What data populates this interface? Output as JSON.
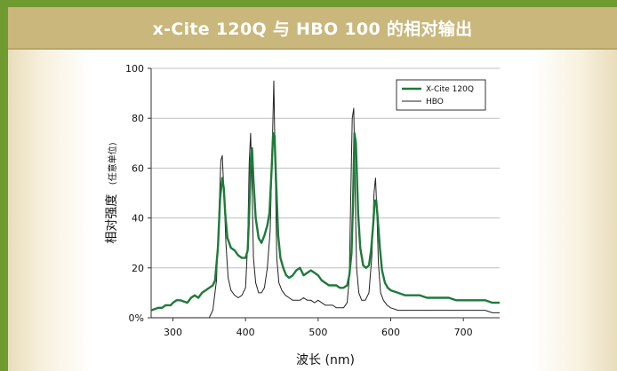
{
  "title": "x-Cite 120Q 与 HBO 100 的相对输出",
  "chart_data": {
    "type": "line",
    "title": "x-Cite 120Q 与 HBO 100 的相对输出",
    "xlabel": "波长 (nm)",
    "ylabel": "相对强度",
    "ylabel_sub": "(任意单位)",
    "xlim": [
      270,
      750
    ],
    "ylim": [
      0,
      100
    ],
    "xticks": [
      300,
      400,
      500,
      600,
      700
    ],
    "xtick_labels": [
      "300",
      "400",
      "500",
      "600",
      "700"
    ],
    "yticks": [
      0,
      20,
      40,
      60,
      80,
      100
    ],
    "ytick_labels": [
      "0%",
      "20",
      "40",
      "60",
      "80",
      "100"
    ],
    "grid": "horizontal",
    "legend_position": "top-right",
    "series": [
      {
        "name": "X-Cite 120Q",
        "color": "#1f7a3a",
        "x": [
          270,
          280,
          285,
          290,
          297,
          300,
          305,
          310,
          320,
          325,
          330,
          335,
          340,
          345,
          350,
          355,
          358,
          362,
          365,
          368,
          370,
          372,
          375,
          380,
          385,
          390,
          395,
          400,
          403,
          405,
          407,
          409,
          411,
          414,
          418,
          422,
          426,
          430,
          433,
          436,
          438,
          440,
          442,
          445,
          448,
          452,
          456,
          460,
          465,
          470,
          475,
          480,
          485,
          490,
          495,
          500,
          505,
          510,
          515,
          520,
          525,
          530,
          535,
          540,
          543,
          546,
          548,
          550,
          552,
          555,
          558,
          562,
          566,
          570,
          573,
          576,
          578,
          580,
          582,
          585,
          588,
          592,
          596,
          600,
          610,
          620,
          630,
          640,
          650,
          660,
          670,
          680,
          690,
          700,
          710,
          720,
          730,
          740,
          750
        ],
        "y": [
          3,
          4,
          4,
          5,
          5,
          6,
          7,
          7,
          6,
          8,
          9,
          8,
          10,
          11,
          12,
          13,
          15,
          28,
          48,
          56,
          52,
          42,
          32,
          28,
          27,
          25,
          24,
          24,
          27,
          42,
          63,
          68,
          55,
          40,
          32,
          30,
          33,
          37,
          42,
          60,
          74,
          73,
          55,
          33,
          24,
          20,
          17,
          16,
          17,
          19,
          20,
          17,
          18,
          19,
          18,
          17,
          15,
          14,
          13,
          13,
          13,
          12,
          12,
          13,
          17,
          26,
          45,
          74,
          70,
          42,
          28,
          21,
          20,
          21,
          27,
          38,
          47,
          47,
          40,
          28,
          19,
          14,
          12,
          11,
          10,
          9,
          9,
          9,
          8,
          8,
          8,
          8,
          7,
          7,
          7,
          7,
          7,
          6,
          6
        ]
      },
      {
        "name": "HBO",
        "color": "#222222",
        "x": [
          270,
          280,
          290,
          300,
          310,
          320,
          330,
          335,
          340,
          345,
          350,
          355,
          360,
          363,
          366,
          368,
          370,
          373,
          376,
          380,
          385,
          390,
          395,
          400,
          403,
          405,
          407,
          409,
          411,
          414,
          418,
          422,
          426,
          430,
          434,
          437,
          439,
          441,
          443,
          446,
          450,
          455,
          460,
          465,
          470,
          475,
          480,
          485,
          490,
          495,
          500,
          505,
          510,
          515,
          520,
          525,
          530,
          535,
          540,
          543,
          545,
          547,
          549,
          551,
          553,
          556,
          560,
          565,
          570,
          574,
          577,
          579,
          581,
          583,
          586,
          590,
          595,
          600,
          610,
          620,
          630,
          640,
          650,
          660,
          670,
          680,
          690,
          700,
          710,
          720,
          730,
          740,
          750
        ],
        "y": [
          0,
          0,
          0,
          0,
          0,
          0,
          0,
          0,
          0,
          0,
          0,
          3,
          15,
          38,
          63,
          65,
          52,
          30,
          16,
          11,
          9,
          8,
          9,
          12,
          30,
          62,
          74,
          52,
          24,
          14,
          10,
          10,
          12,
          20,
          35,
          70,
          95,
          60,
          24,
          14,
          11,
          9,
          8,
          7,
          7,
          7,
          8,
          7,
          7,
          6,
          7,
          6,
          5,
          5,
          5,
          4,
          4,
          4,
          6,
          16,
          50,
          80,
          84,
          50,
          20,
          10,
          7,
          7,
          10,
          25,
          50,
          56,
          42,
          22,
          10,
          7,
          5,
          4,
          3,
          3,
          3,
          3,
          3,
          3,
          3,
          3,
          3,
          3,
          3,
          3,
          3,
          2,
          2
        ]
      }
    ]
  }
}
